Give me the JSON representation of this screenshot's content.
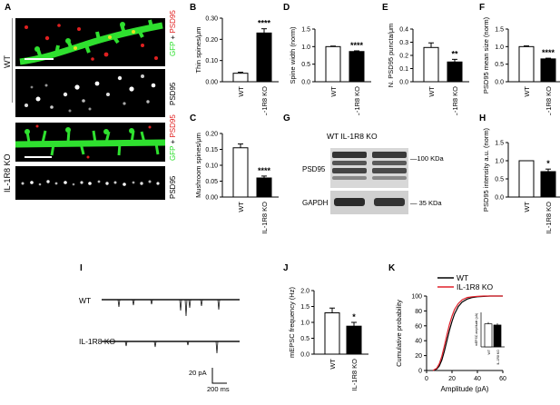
{
  "panel_letters": {
    "A": "A",
    "B": "B",
    "C": "C",
    "D": "D",
    "E": "E",
    "F": "F",
    "G": "G",
    "H": "H",
    "I": "I",
    "J": "J",
    "K": "K"
  },
  "panel_a": {
    "group_wt": "WT",
    "group_ko": "IL-1R8 KO",
    "label_gfp": "GFP",
    "label_plus": " +",
    "label_psd95_red": "PSD95",
    "label_psd95": "PSD95"
  },
  "panel_g": {
    "lane_labels": "WT  IL-1R8 KO",
    "band_top": "PSD95",
    "band_bottom": "GAPDH",
    "marker_top": "—100 KDa",
    "marker_bottom": "— 35 KDa"
  },
  "panel_i": {
    "trace_wt": "WT",
    "trace_ko": "IL-1R8 KO",
    "scale_y": "20 pA",
    "scale_x": "200 ms"
  },
  "colors": {
    "wt_line": "#000000",
    "ko_line": "#e0202a",
    "gfp": "#2fe02f",
    "psd95_red": "#e02020"
  },
  "chart_data": [
    {
      "id": "B",
      "type": "bar",
      "categories": [
        "WT",
        "IL-1R8 KO"
      ],
      "values": [
        0.04,
        0.23
      ],
      "errors": [
        0.005,
        0.02
      ],
      "ylabel": "Thin spines/μm",
      "ylim": [
        0,
        0.3
      ],
      "yticks": [
        "0.00",
        "0.10",
        "0.20",
        "0.30"
      ],
      "significance": "****"
    },
    {
      "id": "C",
      "type": "bar",
      "categories": [
        "WT",
        "IL-1R8 KO"
      ],
      "values": [
        0.155,
        0.06
      ],
      "errors": [
        0.012,
        0.006
      ],
      "ylabel": "Mushroom spines/μm",
      "ylim": [
        0,
        0.2
      ],
      "yticks": [
        "0.00",
        "0.05",
        "0.10",
        "0.15",
        "0.20"
      ],
      "significance": "****"
    },
    {
      "id": "D",
      "type": "bar",
      "categories": [
        "WT",
        "IL-1R8 KO"
      ],
      "values": [
        1.0,
        0.86
      ],
      "errors": [
        0.015,
        0.02
      ],
      "ylabel": "Spine width (norm)",
      "ylim": [
        0,
        1.5
      ],
      "yticks": [
        "0.0",
        "0.5",
        "1.0",
        "1.5"
      ],
      "significance": "****"
    },
    {
      "id": "E",
      "type": "bar",
      "categories": [
        "WT",
        "IL-1R8 KO"
      ],
      "values": [
        0.26,
        0.15
      ],
      "errors": [
        0.035,
        0.02
      ],
      "ylabel": "N. PSD95 puncta/μm",
      "ylim": [
        0,
        0.4
      ],
      "yticks": [
        "0.0",
        "0.1",
        "0.2",
        "0.3",
        "0.4"
      ],
      "significance": "**"
    },
    {
      "id": "F",
      "type": "bar",
      "categories": [
        "WT",
        "IL-1R8 KO"
      ],
      "values": [
        1.0,
        0.65
      ],
      "errors": [
        0.02,
        0.02
      ],
      "ylabel": "PSD95 mean size (norm)",
      "ylim": [
        0,
        1.5
      ],
      "yticks": [
        "0.0",
        "0.5",
        "1.0",
        "1.5"
      ],
      "significance": "****"
    },
    {
      "id": "H",
      "type": "bar",
      "categories": [
        "WT",
        "IL-1R8 KO"
      ],
      "values": [
        1.0,
        0.7
      ],
      "errors": [
        0,
        0.07
      ],
      "ylabel": "PSD95 intensity a.u. (norm)",
      "ylim": [
        0,
        1.5
      ],
      "yticks": [
        "0.0",
        "0.5",
        "1.0",
        "1.5"
      ],
      "significance": "*"
    },
    {
      "id": "J",
      "type": "bar",
      "categories": [
        "WT",
        "IL-1R8 KO"
      ],
      "values": [
        1.3,
        0.88
      ],
      "errors": [
        0.15,
        0.12
      ],
      "ylabel": "mEPSC frequency (Hz)",
      "ylim": [
        0,
        2.0
      ],
      "yticks": [
        "0.0",
        "0.5",
        "1.0",
        "1.5",
        "2.0"
      ],
      "significance": "*"
    },
    {
      "id": "K",
      "type": "line",
      "xlabel": "Amplitude (pA)",
      "ylabel": "Cumulative probability",
      "xlim": [
        0,
        60
      ],
      "ylim": [
        0,
        100
      ],
      "xticks": [
        "0",
        "20",
        "40",
        "60"
      ],
      "yticks": [
        "0",
        "20",
        "40",
        "60",
        "80",
        "100"
      ],
      "legend": [
        "WT",
        "IL-1R8 KO"
      ],
      "series": [
        {
          "name": "WT",
          "x": [
            5,
            8,
            10,
            12,
            14,
            16,
            18,
            20,
            22,
            25,
            28,
            32,
            36,
            40,
            45,
            50,
            55,
            60
          ],
          "y": [
            0,
            2,
            6,
            14,
            26,
            40,
            54,
            66,
            76,
            86,
            92,
            96,
            98,
            99,
            99.5,
            100,
            100,
            100
          ]
        },
        {
          "name": "IL-1R8 KO",
          "x": [
            5,
            8,
            10,
            12,
            14,
            16,
            18,
            20,
            22,
            25,
            28,
            32,
            36,
            40,
            45,
            50,
            55,
            60
          ],
          "y": [
            0,
            3,
            9,
            19,
            33,
            48,
            62,
            73,
            82,
            90,
            95,
            98,
            99,
            99.5,
            100,
            100,
            100,
            100
          ]
        }
      ],
      "inset": {
        "type": "bar",
        "categories": [
          "WT",
          "IL-1R8 KO"
        ],
        "values": [
          20,
          19
        ],
        "errors": [
          1.5,
          1.5
        ],
        "ylabel": "mEPSC amplitude (pA)",
        "ylim": [
          0,
          30
        ]
      }
    }
  ]
}
